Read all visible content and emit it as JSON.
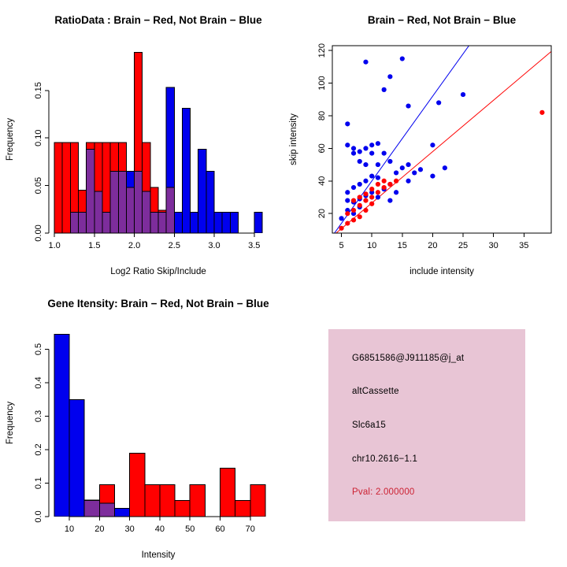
{
  "figure": {
    "background": "#FFFFFF",
    "axis_color": "#000000",
    "series_colors": {
      "red": "#FF0000",
      "blue": "#0000EE",
      "overlap": "#7D2D9C"
    }
  },
  "chart_data": [
    {
      "id": "ratio-histogram",
      "type": "histogram",
      "title": "RatioData : Brain − Red, Not Brain − Blue",
      "xlabel": "Log2 Ratio Skip/Include",
      "ylabel": "Frequency",
      "xlim": [
        0.93,
        3.67
      ],
      "ylim": [
        0,
        0.197
      ],
      "xticks": {
        "values": [
          1.0,
          1.5,
          2.0,
          2.5,
          3.0,
          3.5
        ],
        "labels": [
          "1.0",
          "1.5",
          "2.0",
          "2.5",
          "3.0",
          "3.5"
        ]
      },
      "yticks": {
        "values": [
          0,
          0.05,
          0.1,
          0.15
        ],
        "labels": [
          "0.00",
          "0.05",
          "0.10",
          "0.15"
        ]
      },
      "box": false,
      "grid": false,
      "bins": {
        "start": 1.0,
        "width": 0.1
      },
      "series": [
        {
          "name": "Brain",
          "color": "red",
          "values": [
            0.095,
            0.095,
            0.095,
            0.045,
            0.095,
            0.095,
            0.095,
            0.095,
            0.095,
            0.048,
            0.19,
            0.095,
            0.048,
            0.024,
            0.048,
            0,
            0,
            0,
            0,
            0,
            0,
            0,
            0,
            0,
            0,
            0
          ]
        },
        {
          "name": "Not Brain",
          "color": "blue",
          "values": [
            0,
            0,
            0.022,
            0.022,
            0.088,
            0.044,
            0.022,
            0.065,
            0.065,
            0.065,
            0.065,
            0.044,
            0.022,
            0.022,
            0.153,
            0.022,
            0.131,
            0.022,
            0.088,
            0.065,
            0.022,
            0.022,
            0.022,
            0,
            0,
            0.022
          ]
        }
      ]
    },
    {
      "id": "intensity-scatter",
      "type": "scatter",
      "title": "Brain − Red, Not Brain − Blue",
      "xlabel": "include intensity",
      "ylabel": "skip intensity",
      "xlim": [
        3.5,
        39.5
      ],
      "ylim": [
        8,
        123
      ],
      "xticks": {
        "values": [
          5,
          10,
          15,
          20,
          25,
          30,
          35
        ],
        "labels": [
          "5",
          "10",
          "15",
          "20",
          "25",
          "30",
          "35"
        ]
      },
      "yticks": {
        "values": [
          20,
          40,
          60,
          80,
          100,
          120
        ],
        "labels": [
          "20",
          "40",
          "60",
          "80",
          "100",
          "120"
        ]
      },
      "box": true,
      "grid": false,
      "series": [
        {
          "name": "Not Brain",
          "color": "blue",
          "points": [
            [
              6,
              75
            ],
            [
              9,
              113
            ],
            [
              13,
              104
            ],
            [
              15,
              115
            ],
            [
              12,
              96
            ],
            [
              16,
              86
            ],
            [
              21,
              88
            ],
            [
              25,
              93
            ],
            [
              6,
              62
            ],
            [
              7,
              60
            ],
            [
              7,
              57
            ],
            [
              8,
              58
            ],
            [
              9,
              60
            ],
            [
              10,
              62
            ],
            [
              10,
              57
            ],
            [
              11,
              63
            ],
            [
              12,
              57
            ],
            [
              8,
              52
            ],
            [
              9,
              50
            ],
            [
              11,
              50
            ],
            [
              13,
              52
            ],
            [
              15,
              48
            ],
            [
              16,
              50
            ],
            [
              14,
              45
            ],
            [
              10,
              43
            ],
            [
              11,
              42
            ],
            [
              9,
              40
            ],
            [
              8,
              38
            ],
            [
              7,
              36
            ],
            [
              6,
              33
            ],
            [
              6,
              28
            ],
            [
              7,
              27
            ],
            [
              8,
              29
            ],
            [
              9,
              31
            ],
            [
              10,
              33
            ],
            [
              12,
              35
            ],
            [
              13,
              38
            ],
            [
              17,
              45
            ],
            [
              18,
              47
            ],
            [
              20,
              43
            ],
            [
              16,
              40
            ],
            [
              6,
              22
            ],
            [
              7,
              20
            ],
            [
              8,
              24
            ],
            [
              5,
              17
            ],
            [
              20,
              62
            ],
            [
              22,
              48
            ],
            [
              11,
              30
            ],
            [
              13,
              28
            ],
            [
              14,
              33
            ]
          ]
        },
        {
          "name": "Brain",
          "color": "red",
          "points": [
            [
              5,
              11
            ],
            [
              6,
              14
            ],
            [
              6,
              20
            ],
            [
              7,
              22
            ],
            [
              7,
              28
            ],
            [
              8,
              30
            ],
            [
              8,
              25
            ],
            [
              9,
              32
            ],
            [
              9,
              28
            ],
            [
              10,
              35
            ],
            [
              10,
              30
            ],
            [
              11,
              38
            ],
            [
              11,
              33
            ],
            [
              12,
              40
            ],
            [
              12,
              36
            ],
            [
              13,
              38
            ],
            [
              14,
              40
            ],
            [
              9,
              22
            ],
            [
              10,
              26
            ],
            [
              8,
              18
            ],
            [
              7,
              16
            ],
            [
              38,
              82
            ]
          ]
        }
      ],
      "lines": [
        {
          "name": "not-brain-fit",
          "color": "blue",
          "slope": 5.2,
          "intercept": -12
        },
        {
          "name": "brain-fit",
          "color": "red",
          "slope": 3.15,
          "intercept": -5
        }
      ]
    },
    {
      "id": "gene-intensity-histogram",
      "type": "histogram",
      "title": "Gene Itensity: Brain − Red, Not Brain − Blue",
      "xlabel": "Intensity",
      "ylabel": "Frequency",
      "xlim": [
        3.2,
        75.8
      ],
      "ylim": [
        0,
        0.56
      ],
      "xticks": {
        "values": [
          10,
          20,
          30,
          40,
          50,
          60,
          70
        ],
        "labels": [
          "10",
          "20",
          "30",
          "40",
          "50",
          "60",
          "70"
        ]
      },
      "yticks": {
        "values": [
          0,
          0.1,
          0.2,
          0.3,
          0.4,
          0.5
        ],
        "labels": [
          "0.0",
          "0.1",
          "0.2",
          "0.3",
          "0.4",
          "0.5"
        ]
      },
      "box": false,
      "grid": false,
      "bins": {
        "start": 5,
        "width": 5
      },
      "series": [
        {
          "name": "Brain",
          "color": "red",
          "values": [
            0,
            0,
            0.048,
            0.095,
            0,
            0.19,
            0.095,
            0.095,
            0.048,
            0.095,
            0,
            0.145,
            0.048,
            0.095
          ]
        },
        {
          "name": "Not Brain",
          "color": "blue",
          "values": [
            0.545,
            0.35,
            0.05,
            0.04,
            0.025,
            0,
            0,
            0,
            0,
            0,
            0,
            0,
            0,
            0
          ]
        }
      ]
    }
  ],
  "info_box": {
    "background": "#E8C5D5",
    "text_color": "#000000",
    "pval_color": "#CC2233",
    "probe_id": "G6851586@J911185@j_at",
    "splice_type": "altCassette",
    "gene": "Slc6a15",
    "location": "chr10.2616−1.1",
    "pval_label": "Pval: 2.000000"
  }
}
